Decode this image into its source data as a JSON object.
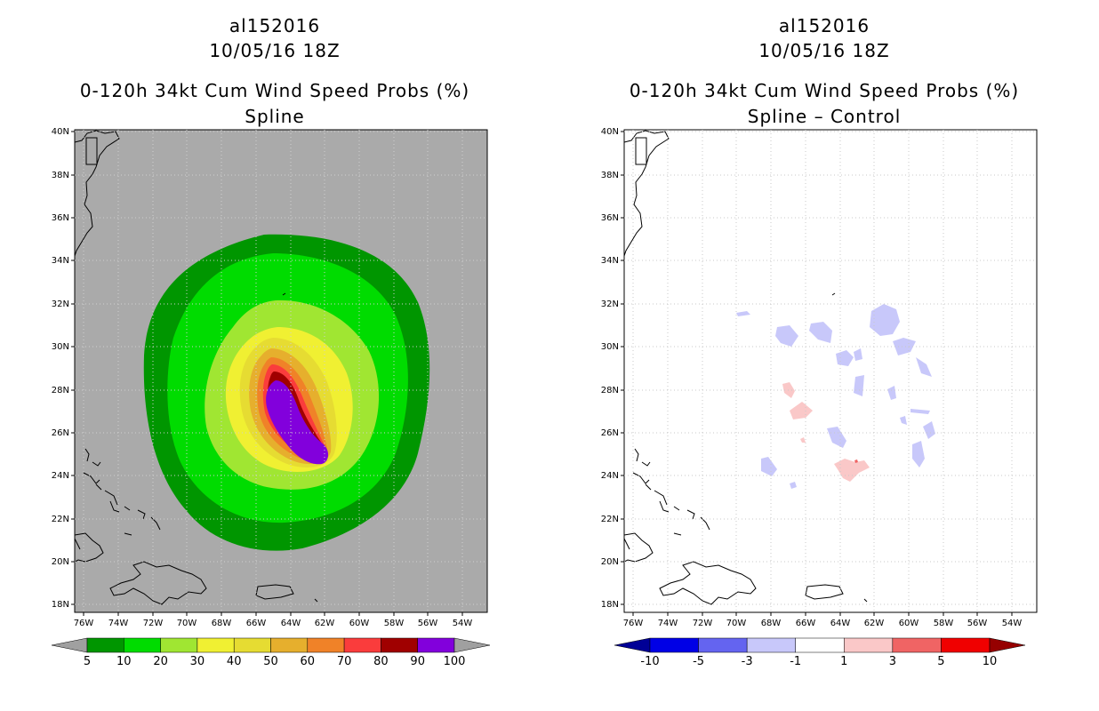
{
  "colors": {
    "ocean_left": "#aaaaaa",
    "land_left": "#aaaaaa",
    "background_right": "#ffffff",
    "coast": "#000000",
    "grid": "#c8c8c8"
  },
  "axes": {
    "lon_labels": [
      "76W",
      "74W",
      "72W",
      "70W",
      "68W",
      "66W",
      "64W",
      "62W",
      "60W",
      "58W",
      "56W",
      "54W"
    ],
    "lat_labels": [
      "18N",
      "20N",
      "22N",
      "24N",
      "26N",
      "28N",
      "30N",
      "32N",
      "34N",
      "36N",
      "38N",
      "40N"
    ]
  },
  "left_panel": {
    "title_line1": "al152016",
    "title_line2": "10/05/16 18Z",
    "title_line3": "0-120h 34kt Cum Wind Speed Probs (%)",
    "title_line4": "Spline",
    "colorbar": {
      "labels": [
        "5",
        "10",
        "20",
        "30",
        "40",
        "50",
        "60",
        "70",
        "80",
        "90",
        "100"
      ],
      "colors": [
        "#009600",
        "#00dc00",
        "#a0e632",
        "#f0f032",
        "#e6dc32",
        "#e6af2d",
        "#f08228",
        "#fa3c3c",
        "#a00000",
        "#8200dc"
      ],
      "under_color": "#a0a0a0",
      "over_color": "#a0a0a0"
    },
    "contour_colors": [
      "#009600",
      "#00dc00",
      "#a0e632",
      "#f0f032",
      "#e6dc32",
      "#e6af2d",
      "#f08228",
      "#fa3c3c",
      "#a00000",
      "#8200dc"
    ]
  },
  "right_panel": {
    "title_line1": "al152016",
    "title_line2": "10/05/16 18Z",
    "title_line3": "0-120h 34kt Cum Wind Speed Probs (%)",
    "title_line4": "Spline – Control",
    "colorbar": {
      "labels": [
        "-10",
        "-5",
        "-3",
        "-1",
        "1",
        "3",
        "5",
        "10"
      ],
      "colors": [
        "#0000e6",
        "#6464f0",
        "#c8c8fa",
        "#ffffff",
        "#fac8c8",
        "#f06464",
        "#f00000"
      ],
      "under_color": "#000096",
      "over_color": "#960000"
    },
    "diff_colors": {
      "neg": "#c8c8fa",
      "pos": "#fac8c8",
      "pos_strong": "#f06464"
    }
  }
}
